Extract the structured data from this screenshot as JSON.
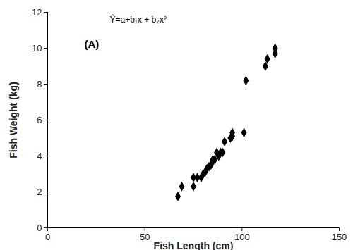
{
  "chart_data": {
    "type": "scatter",
    "x_label": "Fish Length (cm)",
    "y_label": "Fish Weight (kg)",
    "annotations": [
      "Ŷ=a+b₁x + b₂x²",
      "(A)"
    ],
    "x": [
      67,
      69,
      75,
      75,
      77,
      79,
      80,
      81,
      82,
      83,
      84,
      85,
      85,
      86,
      87,
      88,
      89,
      90,
      91,
      94,
      95,
      95,
      101,
      102,
      112,
      113,
      117,
      117
    ],
    "values": [
      1.75,
      2.3,
      2.8,
      2.3,
      2.8,
      2.8,
      3.0,
      3.1,
      3.3,
      3.4,
      3.5,
      3.7,
      3.8,
      3.8,
      4.2,
      4.0,
      4.2,
      4.2,
      4.8,
      5.0,
      5.3,
      5.1,
      5.3,
      8.2,
      9.0,
      9.4,
      9.7,
      10.0
    ],
    "color": "#000000",
    "marker": "diamond",
    "grid": false,
    "xlim": [
      0,
      150
    ],
    "ylim": [
      0,
      12
    ],
    "xticks": [
      0,
      50,
      100,
      150
    ],
    "yticks": [
      0,
      2,
      4,
      6,
      8,
      10,
      12
    ]
  }
}
